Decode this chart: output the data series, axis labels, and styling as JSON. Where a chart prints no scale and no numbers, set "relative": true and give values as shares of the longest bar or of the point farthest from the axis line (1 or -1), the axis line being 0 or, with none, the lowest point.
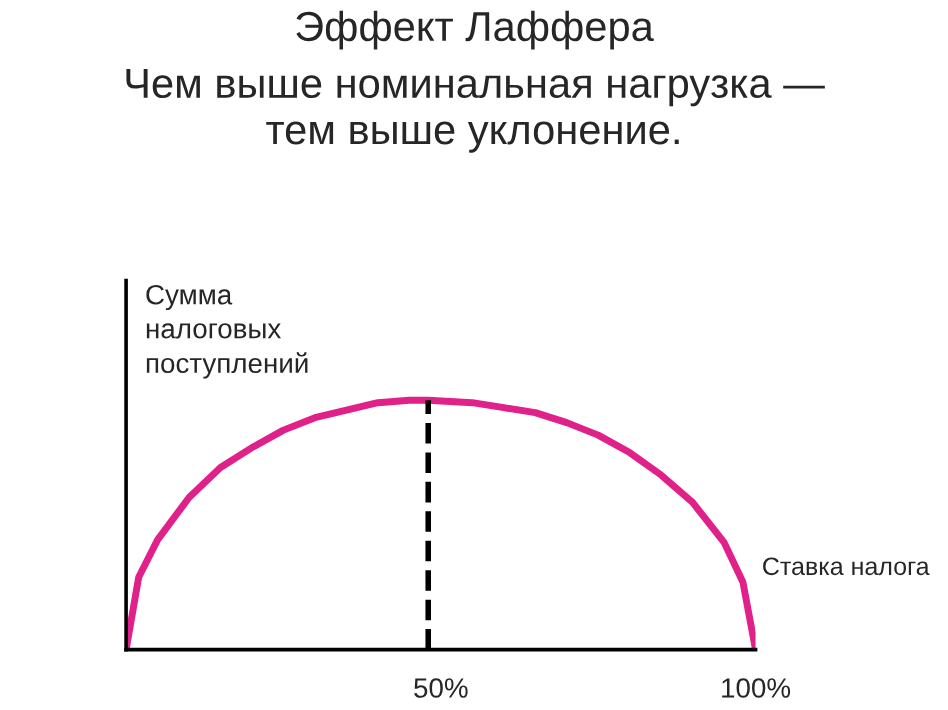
{
  "chart_data": {
    "type": "line",
    "title": "Эффект Лаффера",
    "subtitle": "Чем выше номинальная нагрузка —\nтем выше уклонение.",
    "xlabel": "Ставка налога",
    "ylabel": "Сумма\nналоговых\nпоступлений",
    "relative": true,
    "x": [
      0,
      2,
      5,
      10,
      15,
      20,
      25,
      30,
      35,
      40,
      45,
      48,
      55,
      60,
      65,
      70,
      75,
      80,
      85,
      90,
      95,
      98,
      100
    ],
    "series": [
      {
        "color": "#e0218a",
        "values": [
          0,
          0.29,
          0.44,
          0.61,
          0.73,
          0.81,
          0.88,
          0.93,
          0.96,
          0.99,
          1.0,
          1.0,
          0.99,
          0.97,
          0.95,
          0.91,
          0.86,
          0.79,
          0.7,
          0.59,
          0.43,
          0.27,
          0
        ]
      }
    ],
    "xlim": [
      0,
      100
    ],
    "xticks": [
      {
        "value": 50,
        "label": "50%"
      },
      {
        "value": 100,
        "label": "100%"
      }
    ],
    "tick_labels": "x",
    "ref_lines": [
      {
        "axis": "x",
        "value": 48,
        "label": null,
        "color": "#000000",
        "line_style": "dashed"
      }
    ],
    "grid": false,
    "marker": "none",
    "line_style": "solid"
  }
}
